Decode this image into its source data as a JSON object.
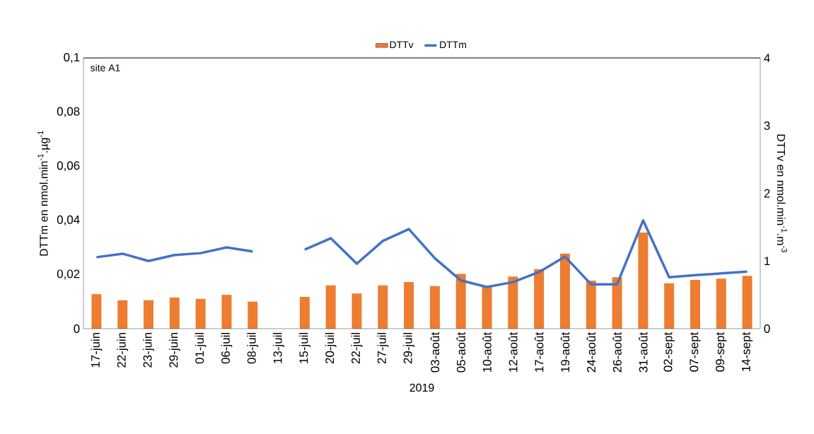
{
  "chart_data": {
    "type": "bar",
    "categories": [
      "17-juin",
      "22-juin",
      "23-juin",
      "29-juin",
      "01-juil",
      "06-juil",
      "08-juil",
      "13-juil",
      "15-juil",
      "20-juil",
      "22-juil",
      "27-juil",
      "29-juil",
      "03-août",
      "05-août",
      "10-août",
      "12-août",
      "17-août",
      "19-août",
      "24-août",
      "26-août",
      "31-août",
      "02-sept",
      "07-sept",
      "09-sept",
      "14-sept"
    ],
    "series": [
      {
        "name": "DTTv",
        "axis": "y2",
        "color": "#ed7d31",
        "values": [
          0.51,
          0.42,
          0.42,
          0.46,
          0.44,
          0.5,
          0.4,
          null,
          0.47,
          0.64,
          0.52,
          0.64,
          0.69,
          0.63,
          0.81,
          0.63,
          0.77,
          0.88,
          1.11,
          0.71,
          0.76,
          1.42,
          0.67,
          0.72,
          0.74,
          0.78
        ]
      },
      {
        "name": "DTTm",
        "type": "line",
        "axis": "y",
        "color": "#4472c4",
        "values": [
          0.0264,
          0.0277,
          0.025,
          0.0272,
          0.0279,
          0.03,
          0.0285,
          null,
          0.0292,
          0.0334,
          0.024,
          0.0324,
          0.0368,
          0.026,
          0.0178,
          0.0154,
          0.0172,
          0.0209,
          0.0266,
          0.0164,
          0.0164,
          0.04,
          0.019,
          0.0198,
          0.0204,
          0.0211
        ]
      }
    ],
    "xlabel": "2019",
    "ylabel": "DTTm en nmol.min$^{-1}$.µg$^{-1}$",
    "y2label": "DTTv en nmol.min$^{-1}$.m$^{-3}$",
    "ylim": [
      0,
      0.1
    ],
    "yticks": [
      0,
      {
        "value": 0.02,
        "label": "0,02"
      },
      {
        "value": 0.04,
        "label": "0,04"
      },
      {
        "value": 0.06,
        "label": "0,06"
      },
      {
        "value": 0.08,
        "label": "0,08"
      },
      {
        "value": 0.1,
        "label": "0,1"
      }
    ],
    "y2lim": [
      0,
      4
    ],
    "y2ticks": [
      0,
      1,
      2,
      3,
      4
    ],
    "annotations": [
      "site A1"
    ],
    "legend": "top",
    "line_style": "solid",
    "marker": "none"
  }
}
